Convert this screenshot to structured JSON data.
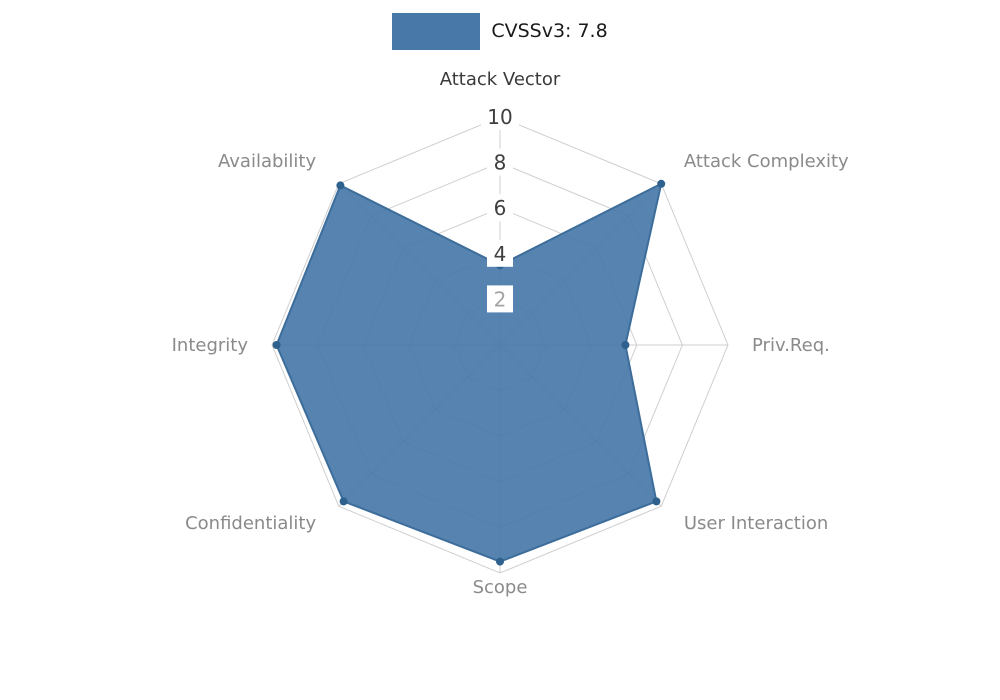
{
  "legend": {
    "label": "CVSSv3: 7.8"
  },
  "chart_data": {
    "type": "radar",
    "title": "CVSSv3: 7.8",
    "axes": [
      "Attack Vector",
      "Attack Complexity",
      "Priv.Req.",
      "User Interaction",
      "Scope",
      "Confidentiality",
      "Integrity",
      "Availability"
    ],
    "series": [
      {
        "name": "CVSSv3: 7.8",
        "values": [
          3.5,
          10,
          5.5,
          9.7,
          9.5,
          9.7,
          9.8,
          9.9
        ]
      }
    ],
    "ticks": [
      10,
      8,
      6,
      4,
      2
    ],
    "muted_ticks": [
      2
    ],
    "rlim": [
      0,
      10
    ],
    "grid": true,
    "legend_position": "top-center",
    "colors": {
      "series": "#4878a8",
      "series_edge": "#3d6d9b",
      "marker": "#2f618f",
      "grid": "#cfcfcf",
      "tick_label": "#3f3f3f",
      "tick_label_muted": "#a3a3a3",
      "axis_label": "#8a8a8a",
      "axis_label_primary": "#3a3a3a",
      "legend_text": "#1a1a1a"
    }
  }
}
